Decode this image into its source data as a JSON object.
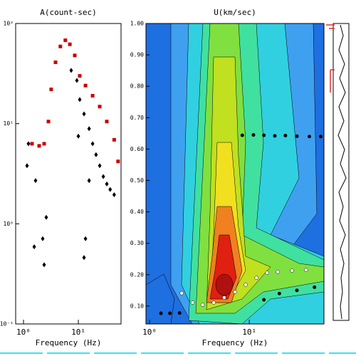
{
  "chart_data": [
    {
      "type": "scatter",
      "title": "A(count-sec)",
      "x_label": "Frequency (Hz)",
      "xlog": true,
      "ylog": true,
      "xlim": [
        0.72,
        60
      ],
      "ylim": [
        0.1,
        100
      ],
      "xticks": [
        {
          "value": 1,
          "label": "10⁰"
        },
        {
          "value": 10,
          "label": "10¹"
        }
      ],
      "yticks": [
        {
          "value": 0.1,
          "label": "10⁻¹"
        },
        {
          "value": 1,
          "label": "10⁰"
        },
        {
          "value": 10,
          "label": "10¹"
        },
        {
          "value": 100,
          "label": "10²"
        }
      ],
      "series": [
        {
          "color": "#cc0000",
          "marker": "square",
          "x": [
            1.43,
            1.93,
            2.38,
            2.85,
            3.2,
            3.84,
            4.7,
            5.8,
            7.0,
            8.6,
            10.6,
            13.5,
            18.2,
            24.5,
            33,
            45,
            53
          ],
          "values": [
            6.3,
            6.0,
            6.3,
            10.5,
            22,
            41,
            59,
            68,
            62,
            48,
            30,
            24,
            19,
            14.8,
            10.5,
            6.9,
            4.2
          ]
        },
        {
          "color": "#000000",
          "marker": "diamond",
          "x": [
            1.23,
            1.16,
            1.66,
            1.57,
            2.24,
            2.6,
            2.38,
            7.4,
            9.4,
            10.6,
            12.7,
            15.7,
            18.2,
            21,
            24.5,
            28.5,
            33,
            38,
            45,
            13.5,
            12.7,
            15.7,
            10
          ],
          "values": [
            6.3,
            3.8,
            2.7,
            0.59,
            0.71,
            1.16,
            0.39,
            34,
            27,
            17.4,
            12.5,
            8.9,
            6.3,
            4.9,
            3.8,
            2.96,
            2.5,
            2.2,
            1.95,
            0.71,
            0.46,
            2.7,
            7.5
          ]
        }
      ]
    },
    {
      "type": "scatter",
      "title": "U(km/sec)",
      "x_label": "Frequency (Hz)",
      "xlog": true,
      "ylog": false,
      "xlim": [
        0.92,
        56
      ],
      "ylim": [
        0.043,
        1.0
      ],
      "xticks": [
        {
          "value": 1,
          "label": "10⁰"
        },
        {
          "value": 10,
          "label": "10¹"
        }
      ],
      "yticks": [
        {
          "value": 0.1,
          "label": "0.10"
        },
        {
          "value": 0.2,
          "label": "0.20"
        },
        {
          "value": 0.3,
          "label": "0.30"
        },
        {
          "value": 0.4,
          "label": "0.40"
        },
        {
          "value": 0.5,
          "label": "0.50"
        },
        {
          "value": 0.6,
          "label": "0.60"
        },
        {
          "value": 0.7,
          "label": "0.70"
        },
        {
          "value": 0.8,
          "label": "0.80"
        },
        {
          "value": 0.9,
          "label": "0.90"
        },
        {
          "value": 1,
          "label": "1.00"
        }
      ],
      "series": [
        {
          "color": "#ffffff",
          "marker": "circle",
          "x": [
            2.1,
            2.7,
            3.4,
            4.4,
            5.6,
            7.2,
            9.2,
            11.8,
            15.1,
            19.3,
            26.8,
            37
          ],
          "values": [
            0.141,
            0.111,
            0.104,
            0.111,
            0.127,
            0.145,
            0.168,
            0.19,
            0.206,
            0.209,
            0.213,
            0.215
          ]
        },
        {
          "color": "#000000",
          "marker": "circle",
          "x": [
            8.5,
            11,
            14,
            18,
            23,
            30,
            40,
            52,
            1.3,
            1.6,
            2.0,
            14,
            20,
            30,
            45
          ],
          "values": [
            0.644,
            0.645,
            0.644,
            0.642,
            0.643,
            0.641,
            0.64,
            0.64,
            0.077,
            0.077,
            0.078,
            0.12,
            0.14,
            0.15,
            0.16
          ]
        }
      ]
    }
  ]
}
